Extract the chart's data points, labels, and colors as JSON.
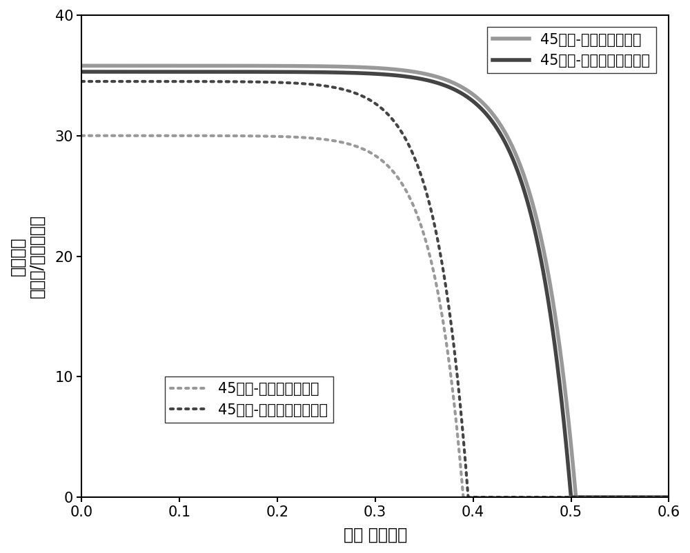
{
  "xlabel": "电压 （伏特）",
  "ylabel_top": "（毫安/平方厘米）",
  "ylabel_bottom": "电流密度",
  "xlim": [
    0.0,
    0.6
  ],
  "ylim": [
    0,
    40
  ],
  "xticks": [
    0.0,
    0.1,
    0.2,
    0.3,
    0.4,
    0.5,
    0.6
  ],
  "yticks": [
    0,
    10,
    20,
    30,
    40
  ],
  "background_color": "#ffffff",
  "legend_fontsize": 15,
  "axis_label_fontsize": 17,
  "tick_fontsize": 15,
  "curve_params": [
    {
      "Isc": 35.8,
      "Voc": 0.505,
      "n": 1.5,
      "color": "#999999",
      "ls": "solid",
      "lw": 4.0
    },
    {
      "Isc": 35.3,
      "Voc": 0.5,
      "n": 1.45,
      "color": "#444444",
      "ls": "solid",
      "lw": 4.0
    },
    {
      "Isc": 30.0,
      "Voc": 0.39,
      "n": 1.2,
      "color": "#999999",
      "ls": "dotted",
      "lw": 3.0
    },
    {
      "Isc": 34.5,
      "Voc": 0.395,
      "n": 1.25,
      "color": "#444444",
      "ls": "dotted",
      "lw": 3.0
    }
  ],
  "legend1_labels": [
    "45天后-涂层的光伏面板",
    "45天后-未处理的堆伏面板"
  ],
  "legend1_colors": [
    "#999999",
    "#444444"
  ],
  "legend2_labels": [
    "45天后-涂层的光伏面板",
    "45天后-未处理的光伏面板"
  ],
  "legend2_colors": [
    "#999999",
    "#444444"
  ]
}
